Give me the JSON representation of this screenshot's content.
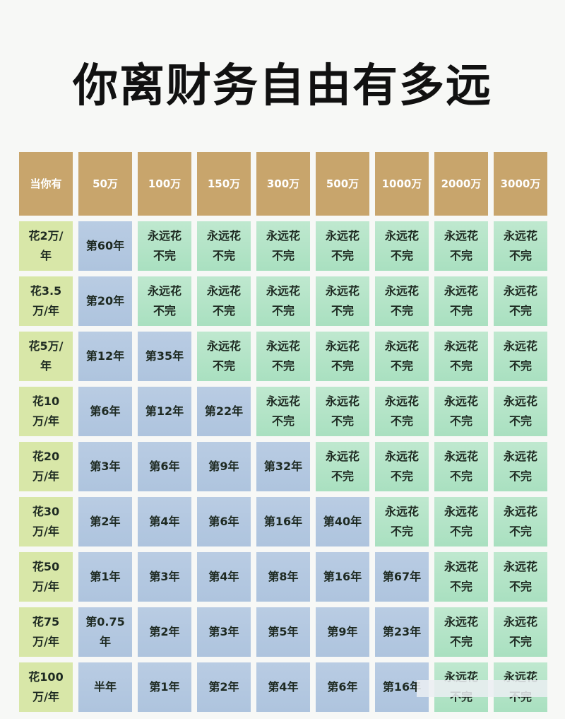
{
  "title": "你离财务自由有多远",
  "table": {
    "header": [
      "当你有",
      "50万",
      "100万",
      "150万",
      "300万",
      "500万",
      "1000万",
      "2000万",
      "3000万"
    ],
    "rows": [
      [
        "花2万/年",
        "第60年",
        "永远花不完",
        "永远花不完",
        "永远花不完",
        "永远花不完",
        "永远花不完",
        "永远花不完",
        "永远花不完"
      ],
      [
        "花3.5万/年",
        "第20年",
        "永远花不完",
        "永远花不完",
        "永远花不完",
        "永远花不完",
        "永远花不完",
        "永远花不完",
        "永远花不完"
      ],
      [
        "花5万/年",
        "第12年",
        "第35年",
        "永远花不完",
        "永远花不完",
        "永远花不完",
        "永远花不完",
        "永远花不完",
        "永远花不完"
      ],
      [
        "花10万/年",
        "第6年",
        "第12年",
        "第22年",
        "永远花不完",
        "永远花不完",
        "永远花不完",
        "永远花不完",
        "永远花不完"
      ],
      [
        "花20万/年",
        "第3年",
        "第6年",
        "第9年",
        "第32年",
        "永远花不完",
        "永远花不完",
        "永远花不完",
        "永远花不完"
      ],
      [
        "花30万/年",
        "第2年",
        "第4年",
        "第6年",
        "第16年",
        "第40年",
        "永远花不完",
        "永远花不完",
        "永远花不完"
      ],
      [
        "花50万/年",
        "第1年",
        "第3年",
        "第4年",
        "第8年",
        "第16年",
        "第67年",
        "永远花不完",
        "永远花不完"
      ],
      [
        "花75万/年",
        "第0.75年",
        "第2年",
        "第3年",
        "第5年",
        "第9年",
        "第23年",
        "永远花不完",
        "永远花不完"
      ],
      [
        "花100万/年",
        "半年",
        "第1年",
        "第2年",
        "第4年",
        "第6年",
        "第16年",
        "永远花不完",
        "永远花不完"
      ]
    ]
  }
}
